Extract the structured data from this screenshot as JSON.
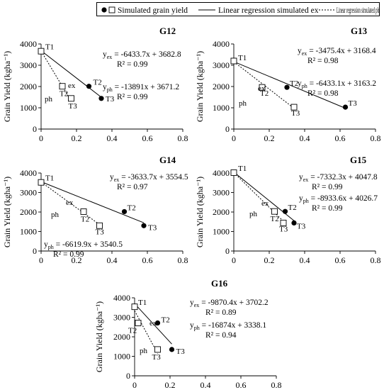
{
  "legend": {
    "simulated_label": "Simulated grain yield",
    "ex_label": "Linear regression simulated ex",
    "ph_label": "Linear regression simulated ph"
  },
  "chart_data": [
    {
      "type": "scatter",
      "title": "G12",
      "ylabel": "Grain Yield (kgha⁻¹)",
      "xlim": [
        0,
        0.8
      ],
      "ylim": [
        0,
        4000
      ],
      "xticks": [
        "0",
        "0.2",
        "0.4",
        "0.6",
        "0.8"
      ],
      "yticks": [
        "0",
        "1000",
        "2000",
        "3000",
        "4000"
      ],
      "series": [
        {
          "points": [
            {
              "label": "T1",
              "x": 0.0,
              "y": 3680
            },
            {
              "label": "T2",
              "x": 0.27,
              "y": 2010
            },
            {
              "label": "T3",
              "x": 0.34,
              "y": 1440
            }
          ]
        },
        {
          "points": [
            {
              "label": "T1",
              "x": 0.0,
              "y": 3660
            },
            {
              "label": "T2",
              "x": 0.12,
              "y": 2010
            },
            {
              "label": "T3",
              "x": 0.17,
              "y": 1440
            }
          ]
        }
      ],
      "fits": {
        "ex": {
          "label": "ex",
          "slope": -6433.7,
          "intercept": 3682.8,
          "x_range": [
            0,
            0.34
          ],
          "equation": "= -6433.7x + 3682.8",
          "r2": "R² = 0.99"
        },
        "ph": {
          "label": "ph",
          "slope": -13891,
          "intercept": 3671.2,
          "x_range": [
            0,
            0.17
          ],
          "equation": "= -13891x + 3671.2",
          "r2": "R² = 0.99"
        }
      }
    },
    {
      "type": "scatter",
      "title": "G13",
      "ylabel": "Grain Yield (kgha⁻¹)",
      "xlim": [
        0,
        0.8
      ],
      "ylim": [
        0,
        4000
      ],
      "xticks": [
        "0",
        "0.2",
        "0.4",
        "0.6",
        "0.8"
      ],
      "yticks": [
        "0",
        "1000",
        "2000",
        "3000",
        "4000"
      ],
      "series": [
        {
          "points": [
            {
              "label": "T1",
              "x": 0.0,
              "y": 3230
            },
            {
              "label": "T2",
              "x": 0.3,
              "y": 1960
            },
            {
              "label": "T3",
              "x": 0.63,
              "y": 1030
            }
          ]
        },
        {
          "points": [
            {
              "label": "T1",
              "x": 0.0,
              "y": 3200
            },
            {
              "label": "T2",
              "x": 0.16,
              "y": 1960
            },
            {
              "label": "T3",
              "x": 0.34,
              "y": 1030
            }
          ]
        }
      ],
      "fits": {
        "ex": {
          "label": "ex",
          "slope": -3475.4,
          "intercept": 3168.4,
          "x_range": [
            0,
            0.63
          ],
          "equation": "= -3475.4x + 3168.4",
          "r2": "R² = 0.98"
        },
        "ph": {
          "label": "ph",
          "slope": -6433.1,
          "intercept": 3163.2,
          "x_range": [
            0,
            0.34
          ],
          "equation": "= -6433.1x + 3163.2",
          "r2": "R² = 0.98"
        }
      }
    },
    {
      "type": "scatter",
      "title": "G14",
      "ylabel": "Grain Yield (kgha⁻¹)",
      "xlim": [
        0,
        0.8
      ],
      "ylim": [
        0,
        4000
      ],
      "xticks": [
        "0",
        "0.2",
        "0.4",
        "0.6",
        "0.8"
      ],
      "yticks": [
        "0",
        "1000",
        "2000",
        "3000",
        "4000"
      ],
      "series": [
        {
          "points": [
            {
              "label": "T1",
              "x": 0.0,
              "y": 3540
            },
            {
              "label": "T2",
              "x": 0.47,
              "y": 2020
            },
            {
              "label": "T3",
              "x": 0.58,
              "y": 1300
            }
          ]
        },
        {
          "points": [
            {
              "label": "T1",
              "x": 0.0,
              "y": 3520
            },
            {
              "label": "T2",
              "x": 0.24,
              "y": 2020
            },
            {
              "label": "T3",
              "x": 0.33,
              "y": 1300
            }
          ]
        }
      ],
      "fits": {
        "ex": {
          "label": "ex",
          "slope": -3633.7,
          "intercept": 3554.5,
          "x_range": [
            0,
            0.58
          ],
          "equation": "= -3633.7x + 3554.5",
          "r2": "R² = 0.97"
        },
        "ph": {
          "label": "ph",
          "slope": -6619.9,
          "intercept": 3540.5,
          "x_range": [
            0,
            0.33
          ],
          "equation": "= -6619.9x + 3540.5",
          "r2": "R² = 0.99"
        }
      }
    },
    {
      "type": "scatter",
      "title": "G15",
      "ylabel": "Grain Yield (kgha⁻¹)",
      "xlim": [
        0,
        0.8
      ],
      "ylim": [
        0,
        4000
      ],
      "xticks": [
        "0",
        "0.2",
        "0.4",
        "0.6",
        "0.8"
      ],
      "yticks": [
        "0",
        "1000",
        "2000",
        "3000",
        "4000"
      ],
      "series": [
        {
          "points": [
            {
              "label": "T1",
              "x": 0.0,
              "y": 4030
            },
            {
              "label": "T2",
              "x": 0.29,
              "y": 2030
            },
            {
              "label": "T3",
              "x": 0.34,
              "y": 1440
            }
          ]
        },
        {
          "points": [
            {
              "label": "T1",
              "x": 0.0,
              "y": 4020
            },
            {
              "label": "T2",
              "x": 0.23,
              "y": 2030
            },
            {
              "label": "T3",
              "x": 0.28,
              "y": 1440
            }
          ]
        }
      ],
      "fits": {
        "ex": {
          "label": "ex",
          "slope": -7332.3,
          "intercept": 4047.8,
          "x_range": [
            0,
            0.34
          ],
          "equation": "= -7332.3x + 4047.8",
          "r2": "R² = 0.99"
        },
        "ph": {
          "label": "ph",
          "slope": -8933.6,
          "intercept": 4026.7,
          "x_range": [
            0,
            0.28
          ],
          "equation": "= -8933.6x + 4026.7",
          "r2": "R² = 0.99"
        }
      }
    },
    {
      "type": "scatter",
      "title": "G16",
      "ylabel": "Grain Yield (kgha⁻¹)",
      "xlim": [
        0,
        0.8
      ],
      "ylim": [
        0,
        4000
      ],
      "xticks": [
        "0",
        "0.2",
        "0.4",
        "0.6",
        "0.8"
      ],
      "yticks": [
        "0",
        "1000",
        "2000",
        "3000",
        "4000"
      ],
      "series": [
        {
          "points": [
            {
              "label": "T1",
              "x": 0.0,
              "y": 3560
            },
            {
              "label": "T2",
              "x": 0.13,
              "y": 2710
            },
            {
              "label": "T3",
              "x": 0.21,
              "y": 1350
            }
          ]
        },
        {
          "points": [
            {
              "label": "T1",
              "x": 0.0,
              "y": 3540
            },
            {
              "label": "T2",
              "x": 0.02,
              "y": 2710
            },
            {
              "label": "T3",
              "x": 0.13,
              "y": 1350
            }
          ]
        }
      ],
      "fits": {
        "ex": {
          "label": "ex",
          "slope": -9870.4,
          "intercept": 3702.2,
          "x_range": [
            0,
            0.21
          ],
          "equation": "= -9870.4x + 3702.2",
          "r2": "R² = 0.89"
        },
        "ph": {
          "label": "ph",
          "slope": -16874,
          "intercept": 3338.1,
          "x_range": [
            0,
            0.13
          ],
          "equation": "= -16874x + 3338.1",
          "r2": "R² = 0.94"
        }
      }
    }
  ]
}
